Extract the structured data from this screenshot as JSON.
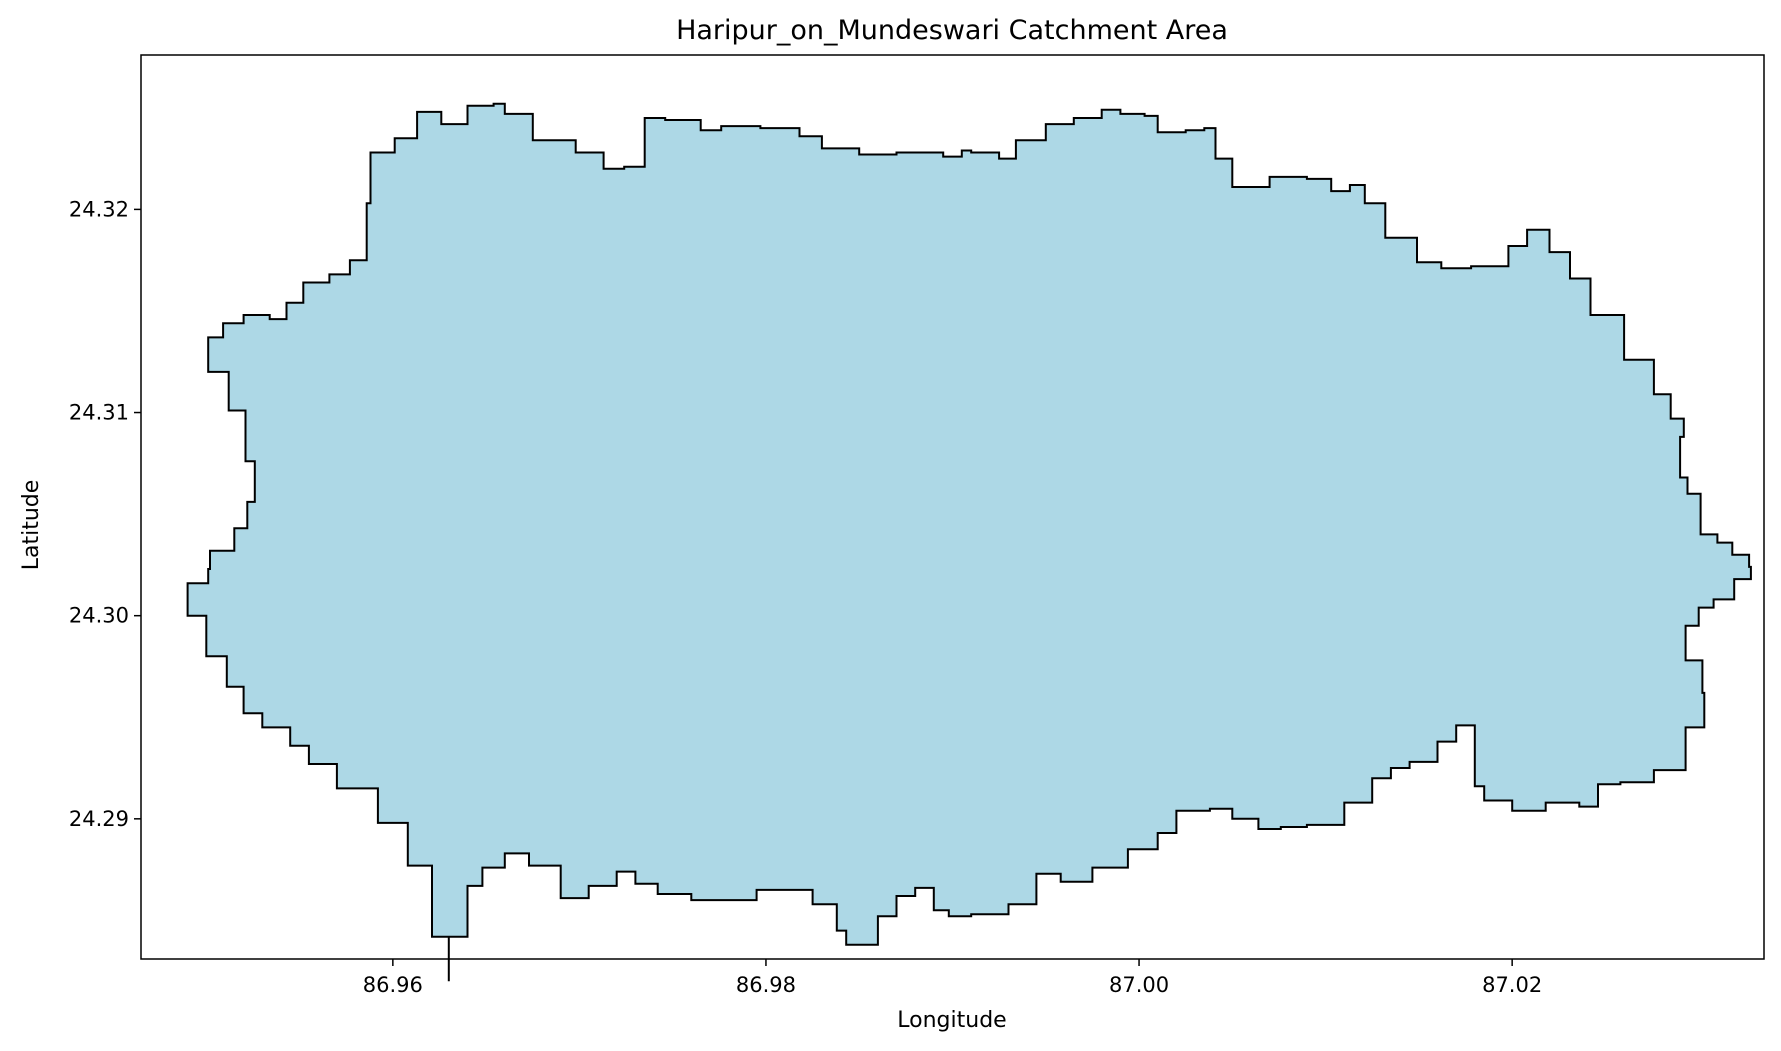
{
  "chart_data": {
    "type": "map",
    "title": "Haripur_on_Mundeswari Catchment Area",
    "xlabel": "Longitude",
    "ylabel": "Latitude",
    "xlim": [
      86.9465,
      87.0335
    ],
    "ylim": [
      24.2831,
      24.3276
    ],
    "xticks": [
      {
        "value": 86.96,
        "label": "86.96"
      },
      {
        "value": 86.98,
        "label": "86.98"
      },
      {
        "value": 87.0,
        "label": "87.00"
      },
      {
        "value": 87.02,
        "label": "87.02"
      }
    ],
    "yticks": [
      {
        "value": 24.29,
        "label": "24.29"
      },
      {
        "value": 24.3,
        "label": "24.30"
      },
      {
        "value": 24.31,
        "label": "24.31"
      },
      {
        "value": 24.32,
        "label": "24.32"
      }
    ],
    "grid": false,
    "fill_color": "#add8e6",
    "edge_color": "#000000",
    "boundary": [
      [
        86.9501,
        24.3137
      ],
      [
        86.9509,
        24.3144
      ],
      [
        86.952,
        24.3148
      ],
      [
        86.9534,
        24.3146
      ],
      [
        86.9543,
        24.3154
      ],
      [
        86.9552,
        24.3164
      ],
      [
        86.9566,
        24.3168
      ],
      [
        86.9577,
        24.3175
      ],
      [
        86.9586,
        24.3203
      ],
      [
        86.9588,
        24.3228
      ],
      [
        86.9601,
        24.3235
      ],
      [
        86.9613,
        24.3248
      ],
      [
        86.9626,
        24.3242
      ],
      [
        86.964,
        24.3251
      ],
      [
        86.9654,
        24.3252
      ],
      [
        86.966,
        24.3247
      ],
      [
        86.9675,
        24.3234
      ],
      [
        86.9698,
        24.3228
      ],
      [
        86.9713,
        24.322
      ],
      [
        86.9724,
        24.3221
      ],
      [
        86.9735,
        24.3245
      ],
      [
        86.9746,
        24.3244
      ],
      [
        86.9765,
        24.3239
      ],
      [
        86.9776,
        24.3241
      ],
      [
        86.9797,
        24.324
      ],
      [
        86.9818,
        24.3236
      ],
      [
        86.983,
        24.323
      ],
      [
        86.985,
        24.3227
      ],
      [
        86.987,
        24.3228
      ],
      [
        86.9895,
        24.3226
      ],
      [
        86.9905,
        24.3229
      ],
      [
        86.991,
        24.3228
      ],
      [
        86.9925,
        24.3225
      ],
      [
        86.9934,
        24.3234
      ],
      [
        86.995,
        24.3242
      ],
      [
        86.9965,
        24.3245
      ],
      [
        86.998,
        24.3249
      ],
      [
        86.999,
        24.3247
      ],
      [
        87.0003,
        24.3246
      ],
      [
        87.001,
        24.3238
      ],
      [
        87.0025,
        24.3239
      ],
      [
        87.0035,
        24.324
      ],
      [
        87.0041,
        24.3225
      ],
      [
        87.005,
        24.3211
      ],
      [
        87.007,
        24.3216
      ],
      [
        87.009,
        24.3215
      ],
      [
        87.0103,
        24.3209
      ],
      [
        87.0113,
        24.3212
      ],
      [
        87.0121,
        24.3203
      ],
      [
        87.0132,
        24.3186
      ],
      [
        87.0149,
        24.3174
      ],
      [
        87.0162,
        24.3171
      ],
      [
        87.0178,
        24.3172
      ],
      [
        87.0198,
        24.3182
      ],
      [
        87.0208,
        24.319
      ],
      [
        87.022,
        24.3179
      ],
      [
        87.0231,
        24.3166
      ],
      [
        87.0242,
        24.3148
      ],
      [
        87.026,
        24.3126
      ],
      [
        87.0276,
        24.3109
      ],
      [
        87.0285,
        24.3097
      ],
      [
        87.0292,
        24.3088
      ],
      [
        87.029,
        24.3068
      ],
      [
        87.0294,
        24.306
      ],
      [
        87.0301,
        24.304
      ],
      [
        87.031,
        24.3036
      ],
      [
        87.0318,
        24.303
      ],
      [
        87.0327,
        24.3024
      ],
      [
        87.0328,
        24.3018
      ],
      [
        87.0319,
        24.3008
      ],
      [
        87.0308,
        24.3004
      ],
      [
        87.03,
        24.2995
      ],
      [
        87.0293,
        24.2978
      ],
      [
        87.0302,
        24.2962
      ],
      [
        87.0303,
        24.2945
      ],
      [
        87.0293,
        24.2924
      ],
      [
        87.0276,
        24.2918
      ],
      [
        87.0258,
        24.2917
      ],
      [
        87.0246,
        24.2906
      ],
      [
        87.0236,
        24.2908
      ],
      [
        87.0218,
        24.2904
      ],
      [
        87.02,
        24.2909
      ],
      [
        87.0185,
        24.2916
      ],
      [
        87.018,
        24.2946
      ],
      [
        87.017,
        24.2938
      ],
      [
        87.016,
        24.2928
      ],
      [
        87.0145,
        24.2925
      ],
      [
        87.0135,
        24.292
      ],
      [
        87.0125,
        24.2908
      ],
      [
        87.011,
        24.2897
      ],
      [
        87.009,
        24.2896
      ],
      [
        87.0076,
        24.2895
      ],
      [
        87.0064,
        24.29
      ],
      [
        87.005,
        24.2905
      ],
      [
        87.0038,
        24.2904
      ],
      [
        87.002,
        24.2893
      ],
      [
        87.001,
        24.2885
      ],
      [
        86.9994,
        24.2876
      ],
      [
        86.9975,
        24.2869
      ],
      [
        86.9958,
        24.2873
      ],
      [
        86.9945,
        24.2858
      ],
      [
        86.993,
        24.2853
      ],
      [
        86.991,
        24.2852
      ],
      [
        86.9898,
        24.2855
      ],
      [
        86.989,
        24.2866
      ],
      [
        86.988,
        24.2862
      ],
      [
        86.987,
        24.2852
      ],
      [
        86.986,
        24.2838
      ],
      [
        86.9849,
        24.2838
      ],
      [
        86.9843,
        24.2845
      ],
      [
        86.9838,
        24.2858
      ],
      [
        86.9825,
        24.2865
      ],
      [
        86.9808,
        24.2865
      ],
      [
        86.9795,
        24.286
      ],
      [
        86.9776,
        24.286
      ],
      [
        86.976,
        24.2863
      ],
      [
        86.9742,
        24.2868
      ],
      [
        86.973,
        24.2874
      ],
      [
        86.972,
        24.2867
      ],
      [
        86.9705,
        24.2861
      ],
      [
        86.969,
        24.2877
      ],
      [
        86.9673,
        24.2883
      ],
      [
        86.966,
        24.2876
      ],
      [
        86.9648,
        24.2867
      ],
      [
        86.964,
        24.2842
      ],
      [
        86.963,
        24.282
      ],
      [
        86.963,
        24.2842
      ],
      [
        86.9621,
        24.2877
      ],
      [
        86.9608,
        24.2898
      ],
      [
        86.9592,
        24.2915
      ],
      [
        86.957,
        24.2927
      ],
      [
        86.9555,
        24.2936
      ],
      [
        86.9545,
        24.2945
      ],
      [
        86.953,
        24.2952
      ],
      [
        86.952,
        24.2965
      ],
      [
        86.9511,
        24.298
      ],
      [
        86.95,
        24.3
      ],
      [
        86.949,
        24.3016
      ],
      [
        86.9501,
        24.3023
      ],
      [
        86.9502,
        24.3032
      ],
      [
        86.9515,
        24.3043
      ],
      [
        86.9522,
        24.3056
      ],
      [
        86.9526,
        24.3076
      ],
      [
        86.9521,
        24.3101
      ],
      [
        86.9512,
        24.312
      ]
    ]
  }
}
